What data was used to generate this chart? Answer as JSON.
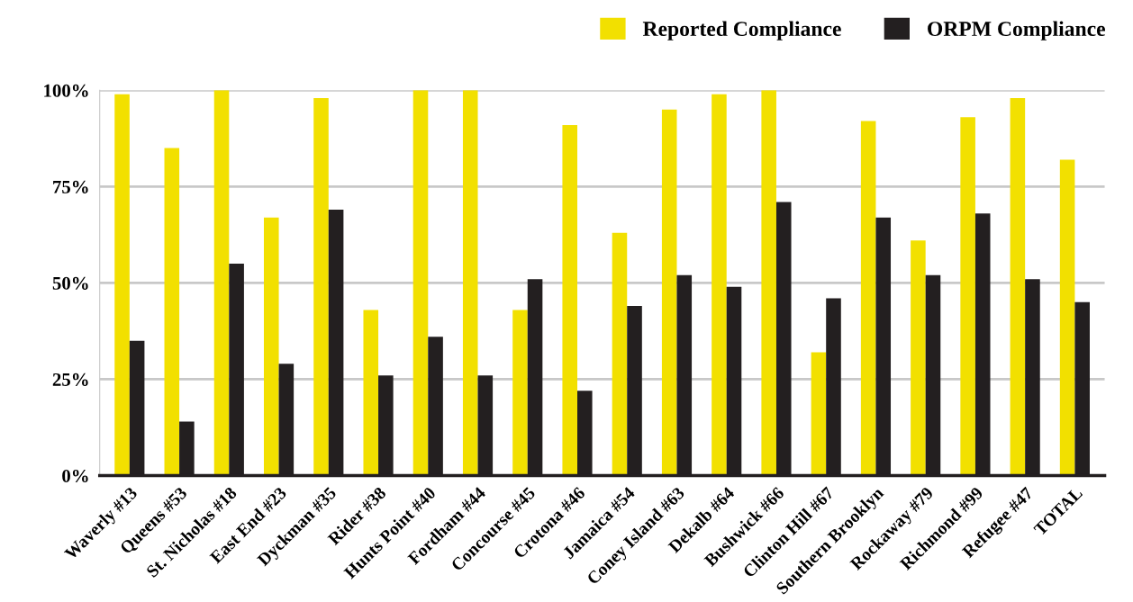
{
  "chart_data": {
    "type": "bar",
    "categories": [
      "Waverly #13",
      "Queens #53",
      "St. Nicholas #18",
      "East End #23",
      "Dyckman #35",
      "Rider #38",
      "Hunts Point #40",
      "Fordham #44",
      "Concourse #45",
      "Crotona #46",
      "Jamaica #54",
      "Coney Island #63",
      "Dekalb #64",
      "Bushwick #66",
      "Clinton Hill #67",
      "Southern Brooklyn",
      "Rockaway #79",
      "Richmond #99",
      "Refugee #47",
      "TOTAL"
    ],
    "series": [
      {
        "name": "Reported Compliance",
        "color": "#f2e000",
        "values": [
          99,
          85,
          100,
          67,
          98,
          43,
          100,
          100,
          43,
          91,
          63,
          95,
          99,
          100,
          32,
          92,
          61,
          93,
          98,
          82
        ]
      },
      {
        "name": "ORPM Compliance",
        "color": "#231f20",
        "values": [
          35,
          14,
          55,
          29,
          69,
          26,
          36,
          26,
          51,
          22,
          44,
          52,
          49,
          71,
          46,
          67,
          52,
          68,
          51,
          45
        ]
      }
    ],
    "ylim": [
      0,
      100
    ],
    "yticks": [
      {
        "value": 0,
        "label": "0%"
      },
      {
        "value": 25,
        "label": "25%"
      },
      {
        "value": 50,
        "label": "50%"
      },
      {
        "value": 75,
        "label": "75%"
      },
      {
        "value": 100,
        "label": "100%"
      }
    ],
    "grid": "y",
    "legend": "top right"
  }
}
